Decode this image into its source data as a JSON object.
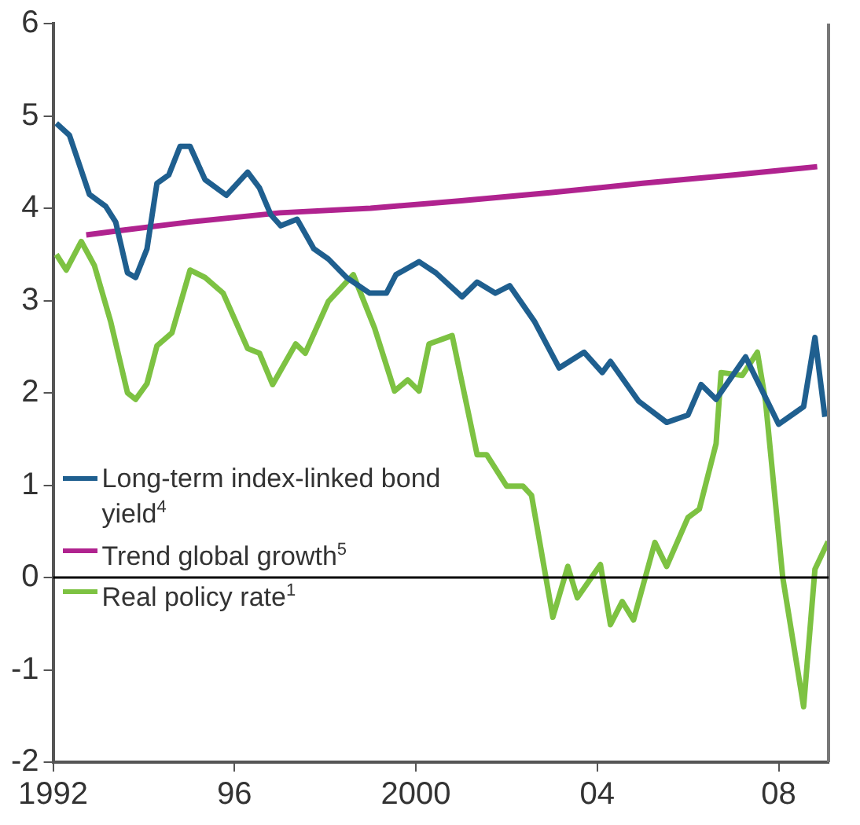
{
  "chart_data": {
    "type": "line",
    "xlim": [
      1992,
      2009.1
    ],
    "xticks": [
      {
        "value": 1992,
        "label": "1992"
      },
      {
        "value": 1996,
        "label": "96"
      },
      {
        "value": 2000,
        "label": "2000"
      },
      {
        "value": 2004,
        "label": "04"
      },
      {
        "value": 2008,
        "label": "08"
      }
    ],
    "ylim": [
      -2,
      6
    ],
    "yticks": [
      -2,
      -1,
      0,
      1,
      2,
      3,
      4,
      5,
      6
    ],
    "legend": "bottom left",
    "marker": "none",
    "line_style": "solid",
    "ref_lines": [
      {
        "axis": "y",
        "value": 0,
        "color": "#000000"
      }
    ],
    "series": [
      {
        "name": "Long-term index-linked bond yield$^{4}$",
        "color": "#1f5f8f",
        "x": [
          1992.07,
          1992.36,
          1992.8,
          1993.16,
          1993.38,
          1993.64,
          1993.82,
          1994.07,
          1994.29,
          1994.55,
          1994.8,
          1995.02,
          1995.35,
          1995.82,
          1996.29,
          1996.55,
          1996.8,
          1997.02,
          1997.38,
          1997.75,
          1998.07,
          1998.47,
          1998.98,
          1999.35,
          1999.56,
          2000.07,
          2000.44,
          2001.02,
          2001.35,
          2001.75,
          2002.07,
          2002.62,
          2003.16,
          2003.71,
          2004.11,
          2004.29,
          2004.91,
          2005.53,
          2006.0,
          2006.29,
          2006.62,
          2007.27,
          2008.0,
          2008.55,
          2008.8,
          2009.02
        ],
        "values": [
          4.92,
          4.79,
          4.15,
          4.02,
          3.85,
          3.3,
          3.25,
          3.56,
          4.27,
          4.36,
          4.67,
          4.67,
          4.31,
          4.14,
          4.39,
          4.22,
          3.93,
          3.81,
          3.88,
          3.56,
          3.45,
          3.25,
          3.08,
          3.08,
          3.28,
          3.42,
          3.3,
          3.04,
          3.2,
          3.08,
          3.16,
          2.77,
          2.27,
          2.44,
          2.22,
          2.34,
          1.91,
          1.68,
          1.76,
          2.09,
          1.93,
          2.39,
          1.66,
          1.85,
          2.6,
          1.74
        ]
      },
      {
        "name": "Trend global growth$^{5}$",
        "color": "#b0238f",
        "x": [
          1992.73,
          1993.5,
          1995,
          1997,
          1999,
          2001,
          2003,
          2005,
          2007,
          2008.85
        ],
        "values": [
          3.71,
          3.76,
          3.85,
          3.95,
          4.0,
          4.08,
          4.17,
          4.27,
          4.36,
          4.45
        ]
      },
      {
        "name": "Real policy rate$^{1}$",
        "color": "#7dc242",
        "x": [
          1992.07,
          1992.29,
          1992.62,
          1992.91,
          1993.27,
          1993.64,
          1993.82,
          1994.07,
          1994.29,
          1994.62,
          1995.02,
          1995.35,
          1995.75,
          1996.29,
          1996.55,
          1996.84,
          1997.35,
          1997.56,
          1998.07,
          1998.62,
          1999.09,
          1999.53,
          1999.82,
          2000.07,
          2000.29,
          2000.8,
          2001.35,
          2001.56,
          2002.0,
          2002.36,
          2002.55,
          2003.02,
          2003.35,
          2003.56,
          2004.07,
          2004.29,
          2004.55,
          2004.8,
          2005.27,
          2005.53,
          2006.0,
          2006.25,
          2006.62,
          2006.73,
          2007.2,
          2007.53,
          2007.71,
          2008.09,
          2008.55,
          2008.8,
          2009.09
        ],
        "values": [
          3.5,
          3.33,
          3.64,
          3.38,
          2.77,
          2.0,
          1.93,
          2.1,
          2.51,
          2.65,
          3.33,
          3.25,
          3.08,
          2.48,
          2.43,
          2.09,
          2.53,
          2.43,
          2.99,
          3.28,
          2.7,
          2.02,
          2.14,
          2.02,
          2.53,
          2.62,
          1.33,
          1.33,
          0.99,
          0.99,
          0.89,
          -0.43,
          0.12,
          -0.22,
          0.14,
          -0.51,
          -0.26,
          -0.46,
          0.38,
          0.12,
          0.65,
          0.74,
          1.45,
          2.22,
          2.19,
          2.44,
          1.91,
          0,
          -1.4,
          0.09,
          0.39
        ]
      }
    ]
  }
}
